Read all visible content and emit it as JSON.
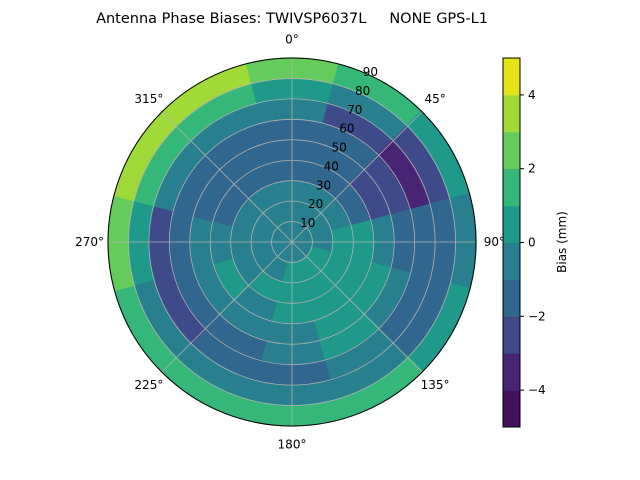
{
  "chart_data": {
    "type": "contour",
    "projection": "polar",
    "title": "Antenna Phase Biases: TWIVSP6037L     NONE GPS-L1",
    "theta_direction": "clockwise",
    "theta_zero": "top",
    "theta_ticks": [
      "0°",
      "45°",
      "90°",
      "135°",
      "180°",
      "225°",
      "270°",
      "315°"
    ],
    "theta_tick_values": [
      0,
      45,
      90,
      135,
      180,
      225,
      270,
      315
    ],
    "r_ticks": [
      "10",
      "20",
      "30",
      "40",
      "50",
      "60",
      "70",
      "80",
      "90"
    ],
    "r_tick_values": [
      10,
      20,
      30,
      40,
      50,
      60,
      70,
      80,
      90
    ],
    "r_range": [
      0,
      90
    ],
    "grid": true,
    "colormap": "viridis",
    "levels": [
      -5,
      -4,
      -3,
      -2,
      -1,
      0,
      1,
      2,
      3,
      4,
      5
    ],
    "level_colors": [
      "#440f5e",
      "#482475",
      "#3f4a8a",
      "#31678e",
      "#28808e",
      "#1f998a",
      "#35b779",
      "#66cb5d",
      "#a0da39",
      "#e5e419"
    ],
    "colorbar": {
      "label": "Bias (mm)",
      "ticks": [
        "−4",
        "−2",
        "0",
        "2",
        "4"
      ],
      "tick_values": [
        -4,
        -2,
        0,
        2,
        4
      ],
      "range": [
        -5,
        5
      ]
    },
    "grid_azimuths": [
      0,
      30,
      60,
      90,
      120,
      150,
      180,
      210,
      240,
      270,
      300,
      330
    ],
    "grid_zeniths": [
      5,
      15,
      25,
      35,
      45,
      55,
      65,
      75,
      85
    ],
    "values": [
      [
        -0.5,
        -0.5,
        -0.5,
        -1.5,
        -1.5,
        -1.5,
        -0.5,
        0.5,
        2.5
      ],
      [
        -0.5,
        -0.5,
        -0.5,
        -1.5,
        -1.5,
        -1.5,
        -2.5,
        -0.5,
        1.5
      ],
      [
        -0.5,
        -0.5,
        -0.5,
        -1.5,
        -2.5,
        -2.5,
        -3.5,
        -2.5,
        0.5
      ],
      [
        -0.5,
        -0.5,
        0.5,
        0.5,
        -0.5,
        -1.5,
        -1.5,
        -1.5,
        -0.5
      ],
      [
        -0.5,
        0.5,
        0.5,
        0.5,
        0.5,
        -0.5,
        -1.5,
        -1.5,
        0.5
      ],
      [
        -0.5,
        0.5,
        0.5,
        0.5,
        0.5,
        0.5,
        -0.5,
        -0.5,
        1.5
      ],
      [
        -0.5,
        0.5,
        0.5,
        0.5,
        -0.5,
        -0.5,
        -1.5,
        -0.5,
        1.5
      ],
      [
        -0.5,
        -0.5,
        0.5,
        -0.5,
        -0.5,
        -1.5,
        -1.5,
        -0.5,
        1.5
      ],
      [
        -0.5,
        -0.5,
        -0.5,
        0.5,
        -0.5,
        -1.5,
        -2.5,
        -0.5,
        1.5
      ],
      [
        -0.5,
        -0.5,
        -0.5,
        -0.5,
        -0.5,
        -1.5,
        -2.5,
        0.5,
        2.5
      ],
      [
        -0.5,
        -0.5,
        -0.5,
        -1.5,
        -1.5,
        -1.5,
        -0.5,
        1.5,
        3.5
      ],
      [
        -0.5,
        -0.5,
        -0.5,
        -1.5,
        -1.5,
        -1.5,
        -0.5,
        1.5,
        3.5
      ]
    ]
  }
}
